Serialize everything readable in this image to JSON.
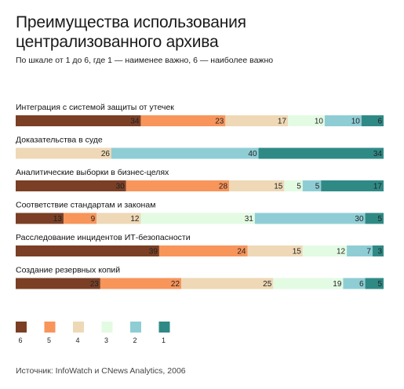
{
  "title": "Преимущества использования централизованного архива",
  "subtitle": "По шкале от 1 до 6, где 1 — наименее важно, 6 — наиболее важно",
  "source": "Источник: InfoWatch и CNews Analytics, 2006",
  "chart_data": {
    "type": "bar",
    "orientation": "horizontal",
    "stacked": true,
    "title": "Преимущества использования централизованного архива",
    "subtitle": "По шкале от 1 до 6, где 1 — наименее важно, 6 — наиболее важно",
    "xlim": [
      0,
      100
    ],
    "grid": false,
    "legend_position": "bottom-left",
    "categories": [
      "Интеграция с системой защиты от утечек",
      "Доказательства в суде",
      "Аналитические выборки в бизнес-целях",
      "Соответствие стандартам и законам",
      "Расследование инцидентов ИТ-безопасности",
      "Создание резервных копий"
    ],
    "series": [
      {
        "name": "6",
        "color": "#7a3f25",
        "values": [
          34,
          0,
          30,
          13,
          39,
          23
        ]
      },
      {
        "name": "5",
        "color": "#f7955b",
        "values": [
          23,
          0,
          28,
          9,
          24,
          22
        ]
      },
      {
        "name": "4",
        "color": "#eed8b6",
        "values": [
          17,
          26,
          15,
          12,
          15,
          25
        ]
      },
      {
        "name": "3",
        "color": "#e3fbe3",
        "values": [
          10,
          0,
          5,
          31,
          12,
          19
        ]
      },
      {
        "name": "2",
        "color": "#8fcdd5",
        "values": [
          10,
          40,
          5,
          30,
          7,
          6
        ]
      },
      {
        "name": "1",
        "color": "#2f8a86",
        "values": [
          6,
          34,
          17,
          5,
          3,
          5
        ]
      }
    ]
  }
}
